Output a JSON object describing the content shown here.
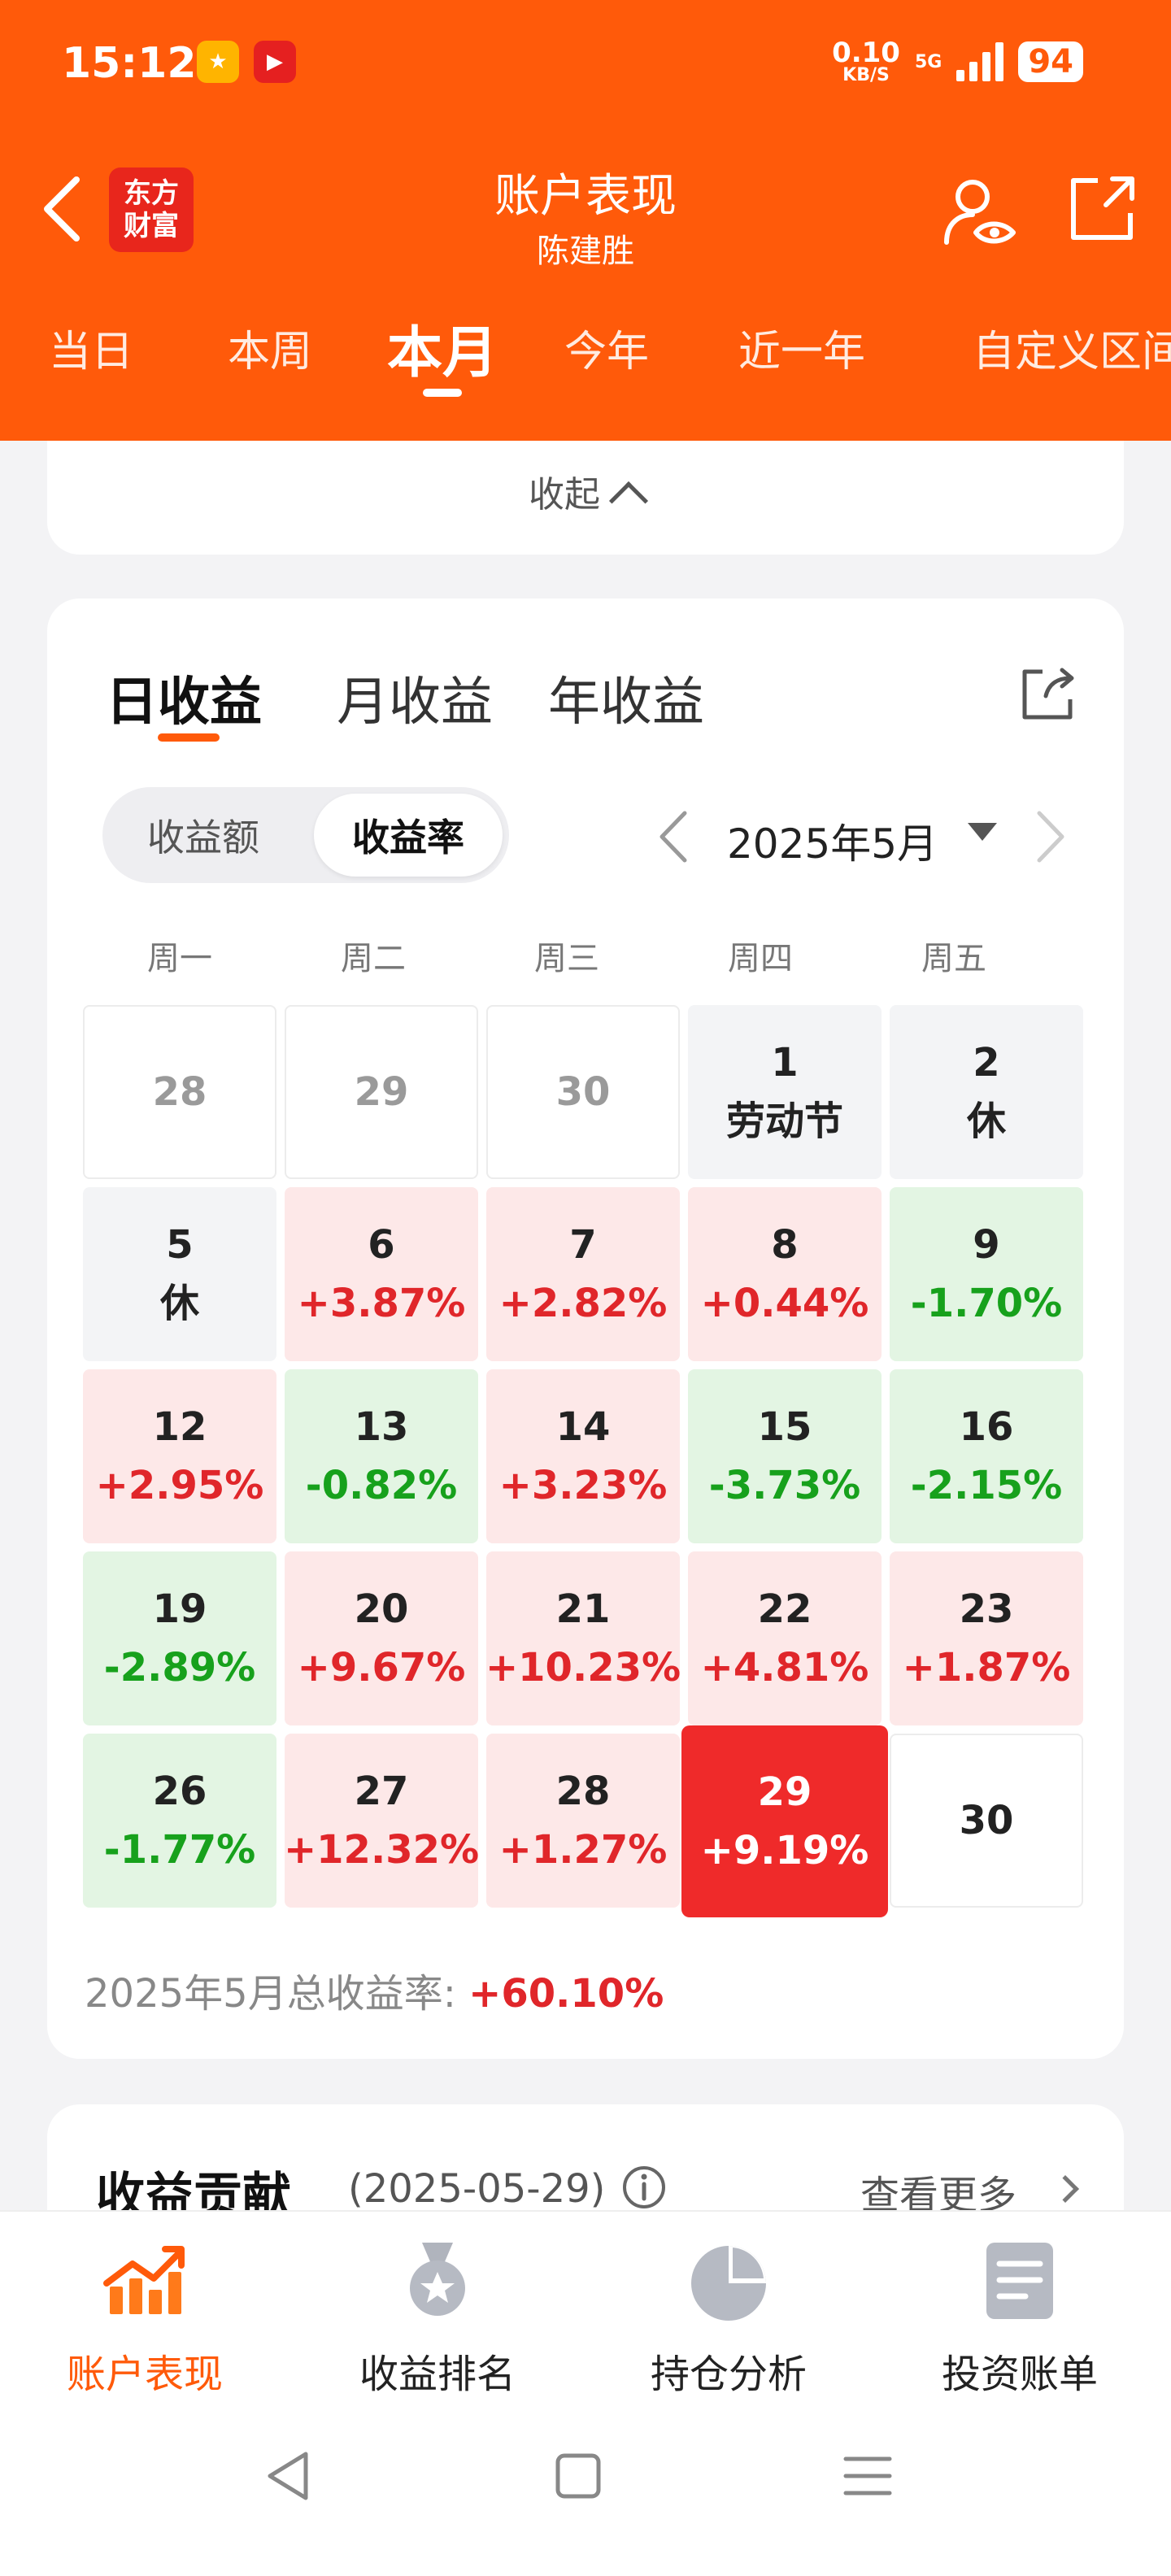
{
  "status_bar": {
    "time": "15:12",
    "net_speed": "0.10",
    "net_unit": "KB/S",
    "net_type": "5G",
    "battery": "94"
  },
  "header": {
    "logo_line1": "东方",
    "logo_line2": "财富",
    "title": "账户表现",
    "subtitle": "陈建胜",
    "period_tabs": [
      "当日",
      "本周",
      "本月",
      "今年",
      "近一年",
      "自定义区间"
    ],
    "active_period": "本月"
  },
  "collapse_label": "收起",
  "returns": {
    "tabs": [
      "日收益",
      "月收益",
      "年收益"
    ],
    "active_tab": "日收益",
    "toggle": [
      "收益额",
      "收益率"
    ],
    "active_toggle": "收益率",
    "month": "2025年5月",
    "weekdays": [
      "周一",
      "周二",
      "周三",
      "周四",
      "周五"
    ],
    "rows": [
      [
        {
          "day": "28",
          "value": "",
          "type": "other"
        },
        {
          "day": "29",
          "value": "",
          "type": "other"
        },
        {
          "day": "30",
          "value": "",
          "type": "other"
        },
        {
          "day": "1",
          "value": "劳动节",
          "type": "holiday"
        },
        {
          "day": "2",
          "value": "休",
          "type": "holiday"
        }
      ],
      [
        {
          "day": "5",
          "value": "休",
          "type": "holiday"
        },
        {
          "day": "6",
          "value": "+3.87%",
          "type": "pos"
        },
        {
          "day": "7",
          "value": "+2.82%",
          "type": "pos"
        },
        {
          "day": "8",
          "value": "+0.44%",
          "type": "pos"
        },
        {
          "day": "9",
          "value": "-1.70%",
          "type": "neg"
        }
      ],
      [
        {
          "day": "12",
          "value": "+2.95%",
          "type": "pos"
        },
        {
          "day": "13",
          "value": "-0.82%",
          "type": "neg"
        },
        {
          "day": "14",
          "value": "+3.23%",
          "type": "pos"
        },
        {
          "day": "15",
          "value": "-3.73%",
          "type": "neg"
        },
        {
          "day": "16",
          "value": "-2.15%",
          "type": "neg"
        }
      ],
      [
        {
          "day": "19",
          "value": "-2.89%",
          "type": "neg"
        },
        {
          "day": "20",
          "value": "+9.67%",
          "type": "pos"
        },
        {
          "day": "21",
          "value": "+10.23%",
          "type": "pos"
        },
        {
          "day": "22",
          "value": "+4.81%",
          "type": "pos"
        },
        {
          "day": "23",
          "value": "+1.87%",
          "type": "pos"
        }
      ],
      [
        {
          "day": "26",
          "value": "-1.77%",
          "type": "neg"
        },
        {
          "day": "27",
          "value": "+12.32%",
          "type": "pos"
        },
        {
          "day": "28",
          "value": "+1.27%",
          "type": "pos"
        },
        {
          "day": "29",
          "value": "+9.19%",
          "type": "selected"
        },
        {
          "day": "30",
          "value": "",
          "type": "blank"
        }
      ]
    ],
    "total_label": "2025年5月总收益率:",
    "total_value": "+60.10%"
  },
  "contribution": {
    "title": "收益贡献",
    "date": "(2025-05-29)",
    "more": "查看更多"
  },
  "bottom_nav": {
    "items": [
      "账户表现",
      "收益排名",
      "持仓分析",
      "投资账单"
    ],
    "active": "账户表现"
  },
  "colors": {
    "brand_orange": "#ff5a0a",
    "gain_red": "#e0262a",
    "loss_green": "#17a11c",
    "selected_red": "#ef2a2a"
  }
}
